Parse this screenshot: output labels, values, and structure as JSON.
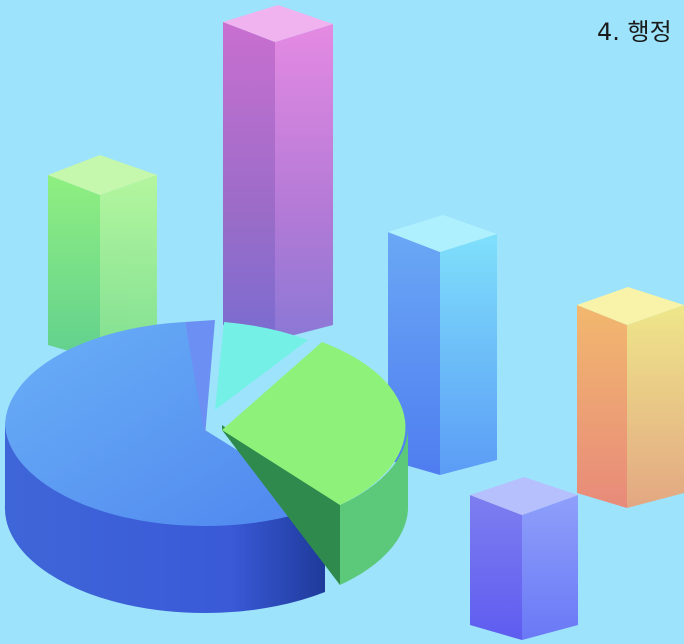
{
  "heading": "4. 행정"
}
